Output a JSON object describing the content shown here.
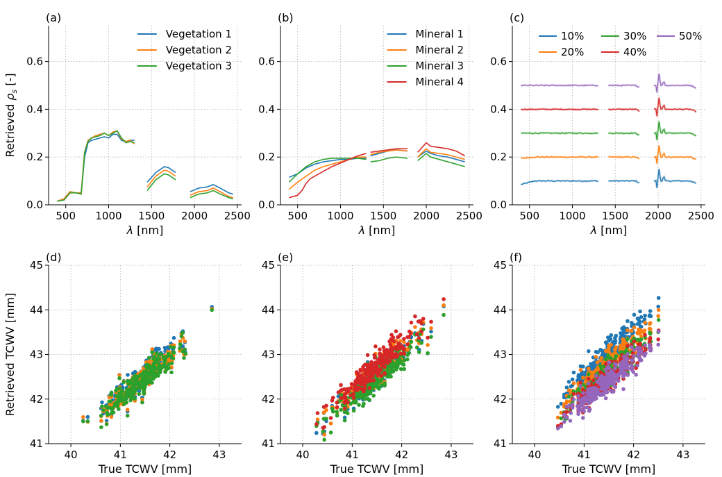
{
  "chart_data": [
    {
      "panel": "(a)",
      "type": "line",
      "xlabel": "λ [nm]",
      "ylabel": "Retrieved ρs [-]",
      "xlim": [
        300,
        2550
      ],
      "ylim": [
        0,
        0.75
      ],
      "xticks": [
        500,
        1000,
        1500,
        2000,
        2500
      ],
      "yticks": [
        0.0,
        0.2,
        0.4,
        0.6
      ],
      "grid": true,
      "legend": "top-right",
      "legend_columns": 1,
      "series": [
        {
          "name": "Vegetation 1",
          "color": "#1f77b4",
          "segments": [
            [
              [
                400,
                0.015
              ],
              [
                480,
                0.025
              ],
              [
                550,
                0.055
              ],
              [
                620,
                0.05
              ],
              [
                680,
                0.05
              ],
              [
                720,
                0.2
              ],
              [
                760,
                0.26
              ],
              [
                800,
                0.27
              ],
              [
                850,
                0.275
              ],
              [
                900,
                0.28
              ],
              [
                950,
                0.285
              ],
              [
                1000,
                0.28
              ],
              [
                1050,
                0.295
              ],
              [
                1100,
                0.295
              ],
              [
                1150,
                0.27
              ],
              [
                1200,
                0.265
              ],
              [
                1250,
                0.27
              ],
              [
                1300,
                0.27
              ]
            ],
            [
              [
                1450,
                0.095
              ],
              [
                1550,
                0.135
              ],
              [
                1650,
                0.16
              ],
              [
                1700,
                0.155
              ],
              [
                1780,
                0.135
              ]
            ],
            [
              [
                1950,
                0.055
              ],
              [
                2050,
                0.07
              ],
              [
                2150,
                0.075
              ],
              [
                2220,
                0.085
              ],
              [
                2300,
                0.07
              ],
              [
                2400,
                0.05
              ],
              [
                2450,
                0.045
              ]
            ]
          ]
        },
        {
          "name": "Vegetation 2",
          "color": "#ff7f0e",
          "segments": [
            [
              [
                400,
                0.015
              ],
              [
                480,
                0.025
              ],
              [
                550,
                0.055
              ],
              [
                620,
                0.05
              ],
              [
                680,
                0.05
              ],
              [
                720,
                0.22
              ],
              [
                760,
                0.27
              ],
              [
                800,
                0.28
              ],
              [
                850,
                0.29
              ],
              [
                900,
                0.295
              ],
              [
                950,
                0.3
              ],
              [
                1000,
                0.29
              ],
              [
                1050,
                0.305
              ],
              [
                1100,
                0.31
              ],
              [
                1150,
                0.275
              ],
              [
                1200,
                0.265
              ],
              [
                1250,
                0.27
              ],
              [
                1300,
                0.255
              ]
            ],
            [
              [
                1450,
                0.075
              ],
              [
                1550,
                0.12
              ],
              [
                1650,
                0.145
              ],
              [
                1700,
                0.14
              ],
              [
                1780,
                0.12
              ]
            ],
            [
              [
                1950,
                0.04
              ],
              [
                2050,
                0.055
              ],
              [
                2150,
                0.06
              ],
              [
                2220,
                0.07
              ],
              [
                2300,
                0.055
              ],
              [
                2400,
                0.035
              ],
              [
                2450,
                0.03
              ]
            ]
          ]
        },
        {
          "name": "Vegetation 3",
          "color": "#2ca02c",
          "segments": [
            [
              [
                400,
                0.015
              ],
              [
                480,
                0.02
              ],
              [
                550,
                0.05
              ],
              [
                620,
                0.05
              ],
              [
                680,
                0.045
              ],
              [
                720,
                0.22
              ],
              [
                760,
                0.265
              ],
              [
                800,
                0.28
              ],
              [
                850,
                0.285
              ],
              [
                900,
                0.29
              ],
              [
                950,
                0.3
              ],
              [
                1000,
                0.29
              ],
              [
                1050,
                0.3
              ],
              [
                1100,
                0.31
              ],
              [
                1150,
                0.28
              ],
              [
                1200,
                0.26
              ],
              [
                1250,
                0.265
              ],
              [
                1300,
                0.26
              ]
            ],
            [
              [
                1450,
                0.06
              ],
              [
                1550,
                0.105
              ],
              [
                1650,
                0.13
              ],
              [
                1700,
                0.125
              ],
              [
                1780,
                0.105
              ]
            ],
            [
              [
                1950,
                0.03
              ],
              [
                2050,
                0.045
              ],
              [
                2150,
                0.05
              ],
              [
                2220,
                0.06
              ],
              [
                2300,
                0.045
              ],
              [
                2400,
                0.03
              ],
              [
                2450,
                0.025
              ]
            ]
          ]
        }
      ]
    },
    {
      "panel": "(b)",
      "type": "line",
      "xlabel": "λ [nm]",
      "xlim": [
        300,
        2550
      ],
      "ylim": [
        0,
        0.75
      ],
      "xticks": [
        500,
        1000,
        1500,
        2000,
        2500
      ],
      "yticks": [
        0.0,
        0.2,
        0.4,
        0.6
      ],
      "grid": true,
      "legend": "top-right",
      "legend_columns": 1,
      "series": [
        {
          "name": "Mineral 1",
          "color": "#1f77b4",
          "segments": [
            [
              [
                400,
                0.115
              ],
              [
                500,
                0.13
              ],
              [
                600,
                0.155
              ],
              [
                700,
                0.17
              ],
              [
                800,
                0.18
              ],
              [
                900,
                0.185
              ],
              [
                1000,
                0.19
              ],
              [
                1100,
                0.19
              ],
              [
                1200,
                0.195
              ],
              [
                1300,
                0.195
              ]
            ],
            [
              [
                1350,
                0.205
              ],
              [
                1450,
                0.215
              ],
              [
                1550,
                0.225
              ],
              [
                1650,
                0.23
              ],
              [
                1780,
                0.225
              ]
            ],
            [
              [
                1900,
                0.2
              ],
              [
                2000,
                0.225
              ],
              [
                2050,
                0.215
              ],
              [
                2150,
                0.205
              ],
              [
                2250,
                0.2
              ],
              [
                2350,
                0.19
              ],
              [
                2450,
                0.18
              ]
            ]
          ]
        },
        {
          "name": "Mineral 2",
          "color": "#ff7f0e",
          "segments": [
            [
              [
                400,
                0.065
              ],
              [
                500,
                0.095
              ],
              [
                600,
                0.12
              ],
              [
                700,
                0.145
              ],
              [
                800,
                0.16
              ],
              [
                900,
                0.17
              ],
              [
                1000,
                0.18
              ],
              [
                1100,
                0.19
              ],
              [
                1200,
                0.2
              ],
              [
                1300,
                0.2
              ]
            ],
            [
              [
                1350,
                0.21
              ],
              [
                1450,
                0.22
              ],
              [
                1550,
                0.225
              ],
              [
                1650,
                0.23
              ],
              [
                1780,
                0.225
              ]
            ],
            [
              [
                1900,
                0.2
              ],
              [
                2000,
                0.235
              ],
              [
                2050,
                0.22
              ],
              [
                2150,
                0.215
              ],
              [
                2250,
                0.21
              ],
              [
                2350,
                0.2
              ],
              [
                2450,
                0.19
              ]
            ]
          ]
        },
        {
          "name": "Mineral 3",
          "color": "#2ca02c",
          "segments": [
            [
              [
                400,
                0.095
              ],
              [
                500,
                0.13
              ],
              [
                600,
                0.16
              ],
              [
                700,
                0.18
              ],
              [
                800,
                0.19
              ],
              [
                900,
                0.195
              ],
              [
                1000,
                0.195
              ],
              [
                1100,
                0.195
              ],
              [
                1200,
                0.195
              ],
              [
                1300,
                0.19
              ]
            ],
            [
              [
                1350,
                0.18
              ],
              [
                1450,
                0.185
              ],
              [
                1550,
                0.195
              ],
              [
                1650,
                0.2
              ],
              [
                1780,
                0.195
              ]
            ],
            [
              [
                1900,
                0.185
              ],
              [
                2000,
                0.215
              ],
              [
                2050,
                0.2
              ],
              [
                2150,
                0.19
              ],
              [
                2250,
                0.18
              ],
              [
                2350,
                0.17
              ],
              [
                2450,
                0.16
              ]
            ]
          ]
        },
        {
          "name": "Mineral 4",
          "color": "#d62728",
          "segments": [
            [
              [
                400,
                0.03
              ],
              [
                500,
                0.04
              ],
              [
                550,
                0.06
              ],
              [
                600,
                0.09
              ],
              [
                650,
                0.11
              ],
              [
                700,
                0.12
              ],
              [
                800,
                0.14
              ],
              [
                900,
                0.16
              ],
              [
                1000,
                0.175
              ],
              [
                1100,
                0.19
              ],
              [
                1200,
                0.205
              ],
              [
                1300,
                0.215
              ]
            ],
            [
              [
                1350,
                0.22
              ],
              [
                1450,
                0.225
              ],
              [
                1550,
                0.23
              ],
              [
                1650,
                0.235
              ],
              [
                1780,
                0.235
              ]
            ],
            [
              [
                1900,
                0.22
              ],
              [
                2000,
                0.26
              ],
              [
                2050,
                0.245
              ],
              [
                2150,
                0.24
              ],
              [
                2250,
                0.235
              ],
              [
                2350,
                0.225
              ],
              [
                2450,
                0.205
              ]
            ]
          ]
        }
      ]
    },
    {
      "panel": "(c)",
      "type": "line",
      "xlabel": "λ [nm]",
      "xlim": [
        300,
        2550
      ],
      "ylim": [
        0,
        0.75
      ],
      "xticks": [
        500,
        1000,
        1500,
        2000,
        2500
      ],
      "yticks": [
        0.0,
        0.2,
        0.4,
        0.6
      ],
      "grid": true,
      "legend": "top-right",
      "legend_columns": 3,
      "series": [
        {
          "name": "10%",
          "color": "#1f77b4",
          "level": 0.1,
          "start": 0.085
        },
        {
          "name": "20%",
          "color": "#ff7f0e",
          "level": 0.2,
          "start": 0.195
        },
        {
          "name": "30%",
          "color": "#2ca02c",
          "level": 0.3,
          "start": 0.3
        },
        {
          "name": "40%",
          "color": "#d62728",
          "level": 0.4,
          "start": 0.4
        },
        {
          "name": "50%",
          "color": "#9467bd",
          "level": 0.5,
          "start": 0.5
        }
      ],
      "segment_ranges": [
        [
          400,
          1300
        ],
        [
          1420,
          1780
        ],
        [
          1950,
          2450
        ]
      ]
    },
    {
      "panel": "(d)",
      "type": "scatter",
      "xlabel": "True TCWV [mm]",
      "ylabel": "Retrieved TCWV [mm]",
      "xlim": [
        39.55,
        43.45
      ],
      "ylim": [
        41,
        45
      ],
      "xticks": [
        40,
        41,
        42,
        43
      ],
      "yticks": [
        41,
        42,
        43,
        44,
        45
      ],
      "grid": true,
      "series": [
        {
          "color": "#1f77b4",
          "offset": 0.06
        },
        {
          "color": "#ff7f0e",
          "offset": 0.0
        },
        {
          "color": "#2ca02c",
          "offset": -0.03
        }
      ]
    },
    {
      "panel": "(e)",
      "type": "scatter",
      "xlabel": "True TCWV [mm]",
      "xlim": [
        39.55,
        43.45
      ],
      "ylim": [
        41,
        45
      ],
      "xticks": [
        40,
        41,
        42,
        43
      ],
      "yticks": [
        41,
        42,
        43,
        44,
        45
      ],
      "grid": true,
      "series": [
        {
          "color": "#1f77b4",
          "offset": 0.05
        },
        {
          "color": "#ff7f0e",
          "offset": 0.1
        },
        {
          "color": "#2ca02c",
          "offset": -0.05
        },
        {
          "color": "#d62728",
          "offset": 0.25
        }
      ]
    },
    {
      "panel": "(f)",
      "type": "scatter",
      "xlabel": "True TCWV [mm]",
      "xlim": [
        39.55,
        43.45
      ],
      "ylim": [
        41,
        45
      ],
      "xticks": [
        40,
        41,
        42,
        43
      ],
      "yticks": [
        41,
        42,
        43,
        44,
        45
      ],
      "grid": true,
      "series": [
        {
          "color": "#1f77b4",
          "offset": 0.55
        },
        {
          "color": "#ff7f0e",
          "offset": 0.3
        },
        {
          "color": "#2ca02c",
          "offset": 0.1
        },
        {
          "color": "#d62728",
          "offset": 0.0
        },
        {
          "color": "#9467bd",
          "offset": -0.1
        }
      ]
    }
  ]
}
